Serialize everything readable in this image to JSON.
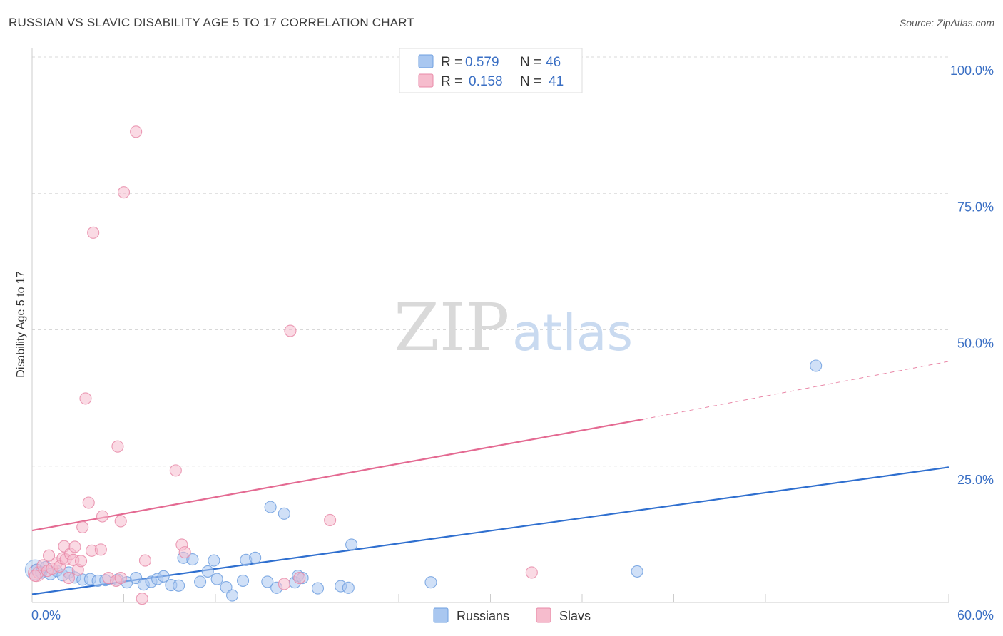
{
  "title": "RUSSIAN VS SLAVIC DISABILITY AGE 5 TO 17 CORRELATION CHART",
  "source": "Source: ZipAtlas.com",
  "watermark": {
    "zip": "ZIP",
    "atlas": "atlas"
  },
  "colors": {
    "russians_fill": "#a9c7f0",
    "russians_stroke": "#6e9fdf",
    "russians_line": "#2f6fcf",
    "slavs_fill": "#f6bccd",
    "slavs_stroke": "#e88aa8",
    "slavs_line": "#e46a92",
    "grid": "#d8d8d8",
    "axis_text": "#3a6fc4"
  },
  "stats": [
    {
      "r_label": "R =",
      "r_value": "0.579",
      "n_label": "N =",
      "n_value": "46"
    },
    {
      "r_label": "R =",
      "r_value": "0.158",
      "n_label": "N =",
      "n_value": "41"
    }
  ],
  "chart_data": {
    "type": "scatter",
    "title": "RUSSIAN VS SLAVIC DISABILITY AGE 5 TO 17 CORRELATION CHART",
    "xlabel": "",
    "ylabel": "Disability Age 5 to 17",
    "xlim": [
      0,
      60
    ],
    "ylim": [
      0,
      100
    ],
    "x_tick_labels": [
      "0.0%",
      "60.0%"
    ],
    "y_ticks": [
      25,
      50,
      75,
      100
    ],
    "y_tick_labels": [
      "25.0%",
      "50.0%",
      "75.0%",
      "100.0%"
    ],
    "grid": true,
    "legend_position": "bottom-center",
    "series": [
      {
        "name": "Russians",
        "r": 0.579,
        "n": 46,
        "trend": {
          "x0": 0,
          "y0": 1.5,
          "x1": 60,
          "y1": 24.8
        },
        "points": [
          [
            0.3,
            6.0
          ],
          [
            0.6,
            5.5
          ],
          [
            0.9,
            6.5
          ],
          [
            1.2,
            5.2
          ],
          [
            1.6,
            5.8
          ],
          [
            2.0,
            5.0
          ],
          [
            2.4,
            5.5
          ],
          [
            2.8,
            4.6
          ],
          [
            3.3,
            4.2
          ],
          [
            3.8,
            4.3
          ],
          [
            4.3,
            4.0
          ],
          [
            4.8,
            4.1
          ],
          [
            5.6,
            4.2
          ],
          [
            6.2,
            3.7
          ],
          [
            6.8,
            4.5
          ],
          [
            7.3,
            3.3
          ],
          [
            7.8,
            3.8
          ],
          [
            8.2,
            4.3
          ],
          [
            8.6,
            4.8
          ],
          [
            9.1,
            3.2
          ],
          [
            9.6,
            3.1
          ],
          [
            9.9,
            8.2
          ],
          [
            10.5,
            7.9
          ],
          [
            11.0,
            3.8
          ],
          [
            11.5,
            5.7
          ],
          [
            11.9,
            7.7
          ],
          [
            12.1,
            4.3
          ],
          [
            12.7,
            2.8
          ],
          [
            13.1,
            1.3
          ],
          [
            13.8,
            4.0
          ],
          [
            14.0,
            7.8
          ],
          [
            14.6,
            8.2
          ],
          [
            15.4,
            3.8
          ],
          [
            15.6,
            17.5
          ],
          [
            16.0,
            2.7
          ],
          [
            16.5,
            16.3
          ],
          [
            17.2,
            3.7
          ],
          [
            17.4,
            4.9
          ],
          [
            17.7,
            4.5
          ],
          [
            18.7,
            2.6
          ],
          [
            20.2,
            3.0
          ],
          [
            20.7,
            2.7
          ],
          [
            20.9,
            10.6
          ],
          [
            26.1,
            3.7
          ],
          [
            39.6,
            5.7
          ],
          [
            51.3,
            43.4
          ]
        ]
      },
      {
        "name": "Slavs",
        "r": 0.158,
        "n": 41,
        "trend": {
          "x0": 0,
          "y0": 13.2,
          "x1": 40,
          "y1": 33.6
        },
        "trend_dashed": {
          "x0": 40,
          "y0": 33.6,
          "x1": 60,
          "y1": 44.2
        },
        "points": [
          [
            0.4,
            5.5
          ],
          [
            0.7,
            6.8
          ],
          [
            1.0,
            5.8
          ],
          [
            1.1,
            8.6
          ],
          [
            1.3,
            6.2
          ],
          [
            1.6,
            7.2
          ],
          [
            1.8,
            6.6
          ],
          [
            2.0,
            8.1
          ],
          [
            2.1,
            10.3
          ],
          [
            2.2,
            7.9
          ],
          [
            2.4,
            4.5
          ],
          [
            2.5,
            8.9
          ],
          [
            2.7,
            7.8
          ],
          [
            2.8,
            10.2
          ],
          [
            3.0,
            6.0
          ],
          [
            3.2,
            7.6
          ],
          [
            3.3,
            13.8
          ],
          [
            3.5,
            37.4
          ],
          [
            3.7,
            18.3
          ],
          [
            3.9,
            9.5
          ],
          [
            4.0,
            67.8
          ],
          [
            4.5,
            9.7
          ],
          [
            4.6,
            15.8
          ],
          [
            5.0,
            4.5
          ],
          [
            5.5,
            4.0
          ],
          [
            5.6,
            28.6
          ],
          [
            5.8,
            4.5
          ],
          [
            5.8,
            14.9
          ],
          [
            6.0,
            75.2
          ],
          [
            6.8,
            86.3
          ],
          [
            7.2,
            0.7
          ],
          [
            7.4,
            7.7
          ],
          [
            9.4,
            24.2
          ],
          [
            9.8,
            10.6
          ],
          [
            10.0,
            9.2
          ],
          [
            16.5,
            3.4
          ],
          [
            16.9,
            49.8
          ],
          [
            17.5,
            4.5
          ],
          [
            19.5,
            15.1
          ],
          [
            32.7,
            5.5
          ],
          [
            0.2,
            4.9
          ]
        ]
      }
    ]
  },
  "legend": {
    "items": [
      {
        "label": "Russians"
      },
      {
        "label": "Slavs"
      }
    ]
  }
}
